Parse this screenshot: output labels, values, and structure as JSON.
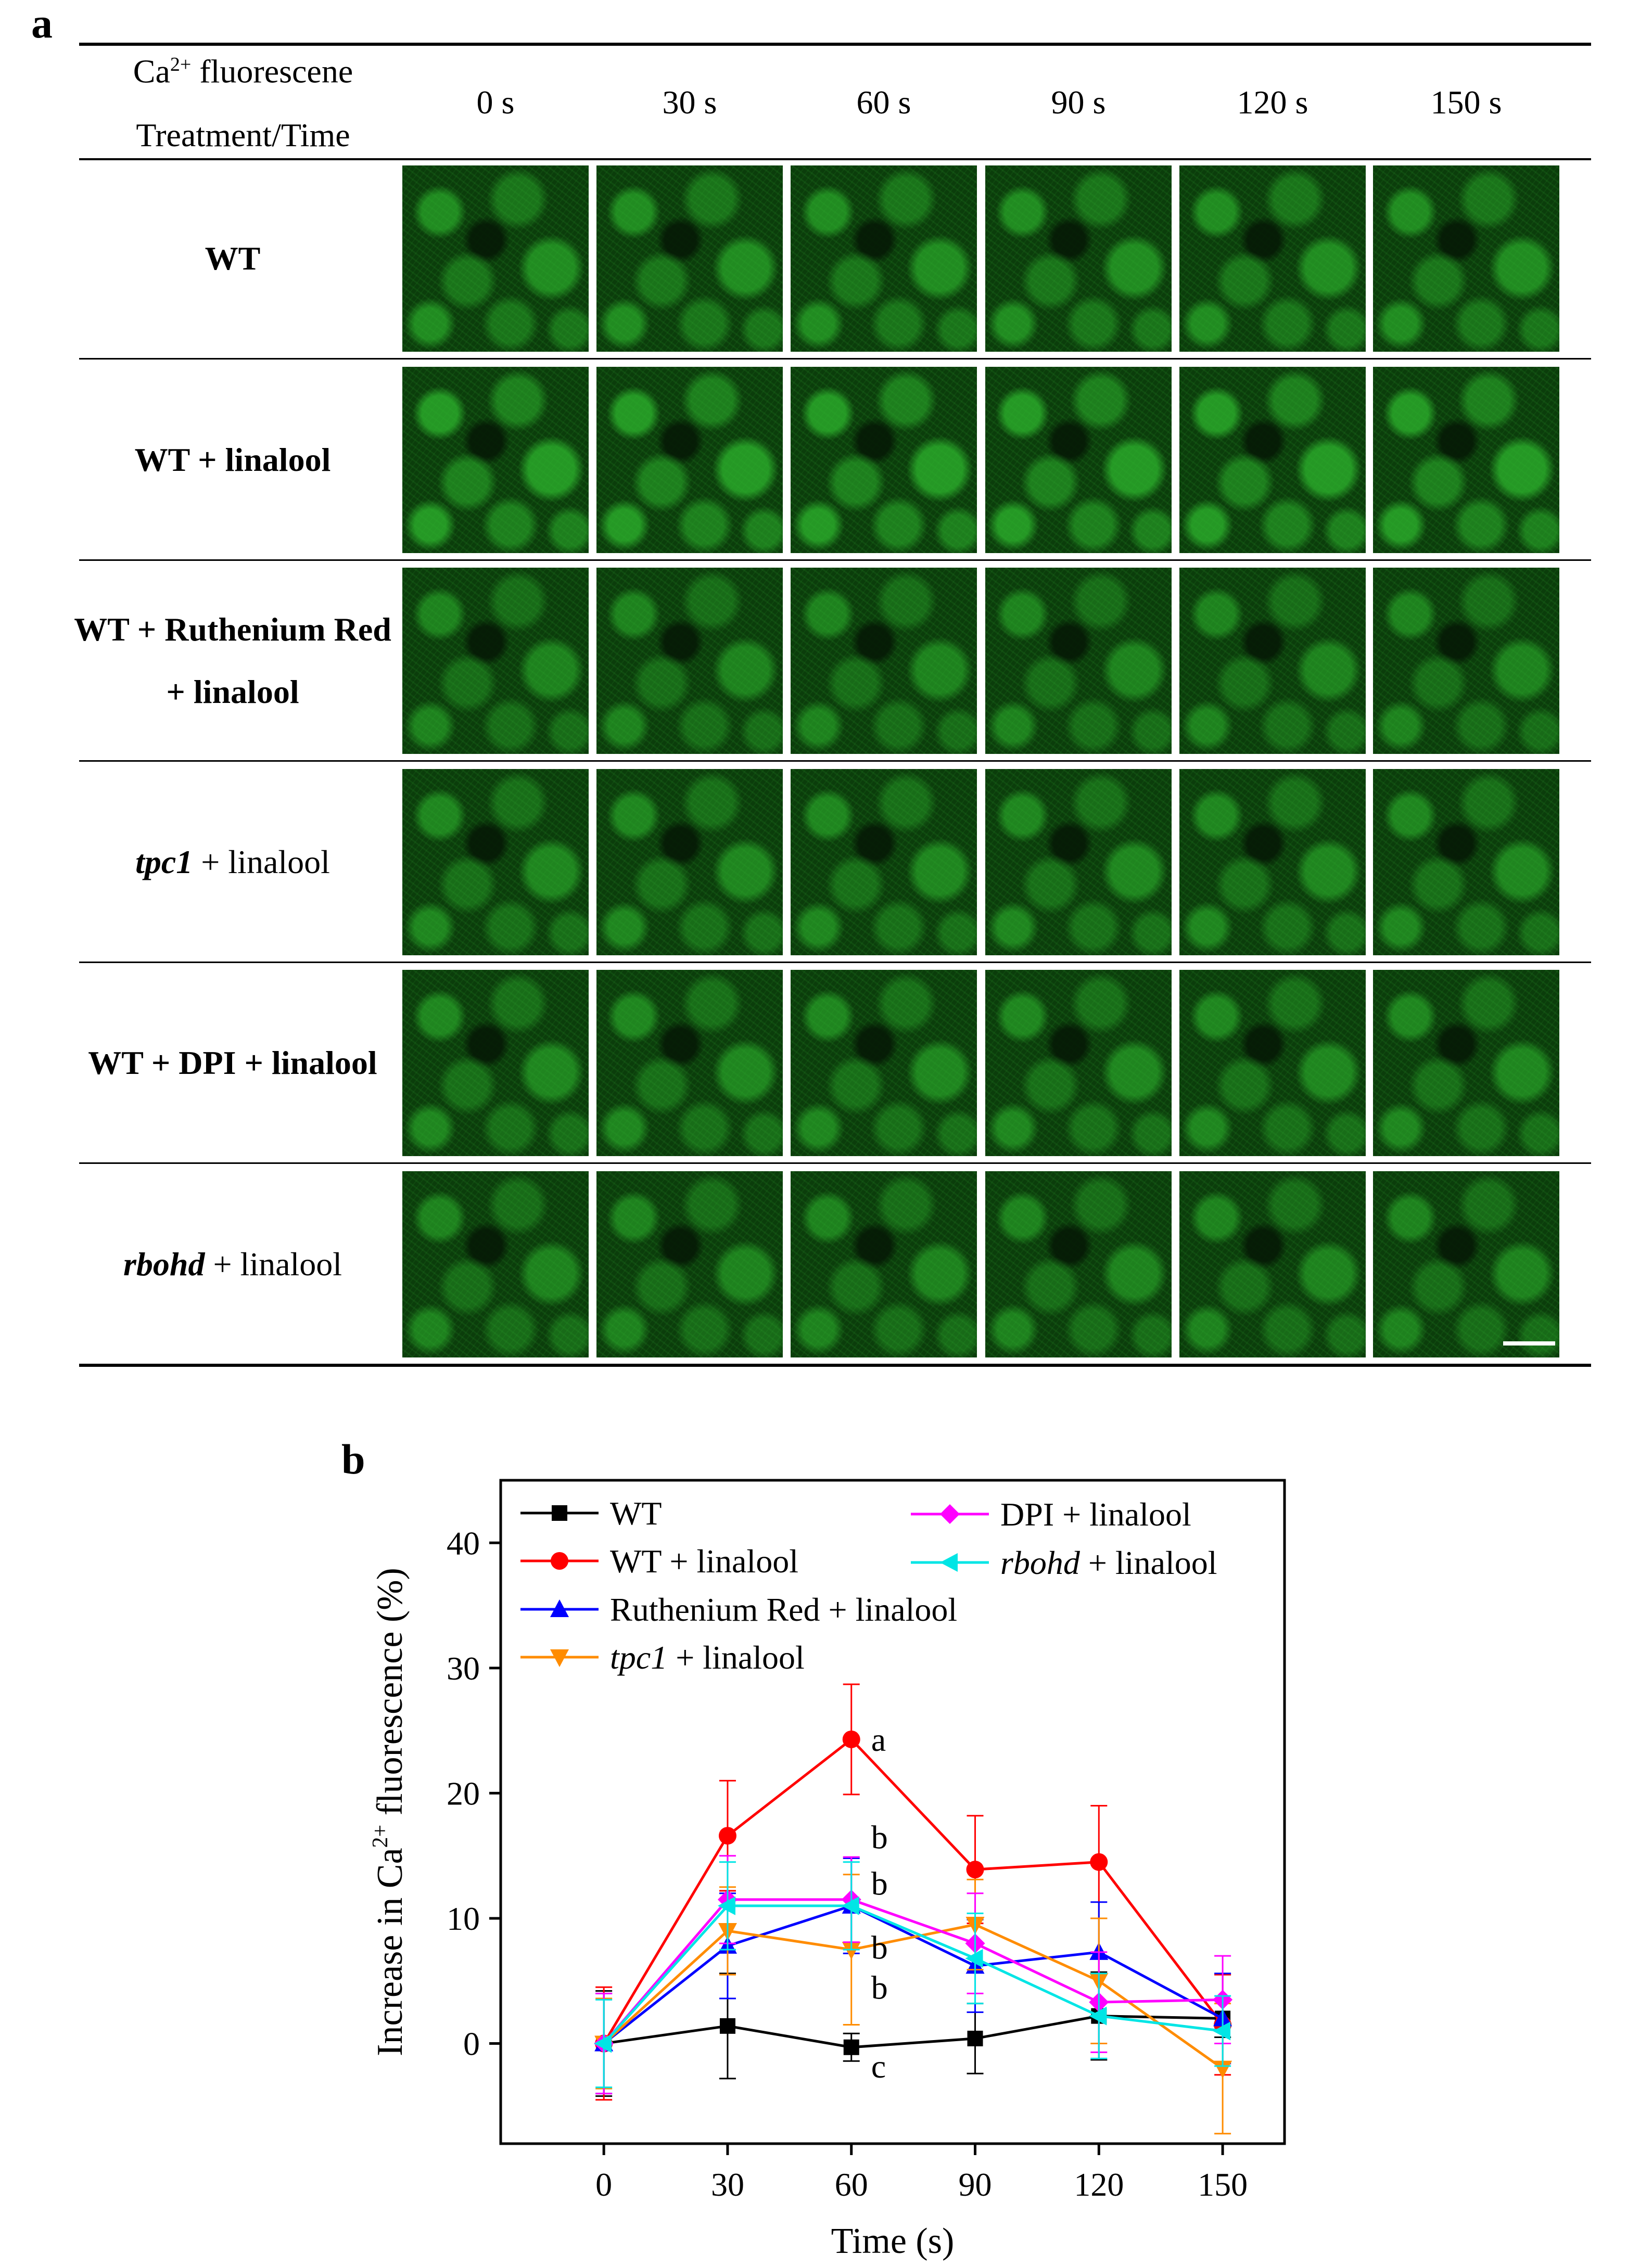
{
  "panel_a": {
    "letter": "a",
    "header": {
      "row1": "Ca",
      "row1_sup": "2+",
      "row1_rest": " fluorescene",
      "row2": "Treatment/Time"
    },
    "times": [
      "0 s",
      "30 s",
      "60 s",
      "90 s",
      "120 s",
      "150 s"
    ],
    "rows": [
      {
        "italic": "",
        "text": "WT",
        "line2": ""
      },
      {
        "italic": "",
        "text": "WT + linalool",
        "line2": ""
      },
      {
        "italic": "",
        "text": "WT + Ruthenium Red",
        "line2": "+ linalool"
      },
      {
        "italic": "tpc1",
        "text": " + linalool",
        "line2": ""
      },
      {
        "italic": "",
        "text": "WT + DPI + linalool",
        "line2": ""
      },
      {
        "italic": "rbohd",
        "text": " + linalool",
        "line2": ""
      }
    ],
    "image_brightness": [
      0.55,
      0.75,
      0.4,
      0.45,
      0.45,
      0.4
    ],
    "color_fluorescence": "#2db52d"
  },
  "panel_b": {
    "letter": "b"
  },
  "chart_data": {
    "type": "line",
    "xlabel": "Time (s)",
    "ylabel_prefix": "Increase in Ca",
    "ylabel_sup": "2+",
    "ylabel_suffix": " fluorescence (%)",
    "xlim": [
      -25,
      165
    ],
    "ylim": [
      -8,
      45
    ],
    "x_ticks": [
      0,
      30,
      60,
      90,
      120,
      150
    ],
    "y_ticks": [
      0,
      10,
      20,
      30,
      40
    ],
    "x": [
      0,
      30,
      60,
      90,
      120,
      150
    ],
    "series": [
      {
        "name": "WT",
        "italic": "",
        "color": "#000000",
        "marker": "square",
        "values": [
          0,
          1.4,
          -0.3,
          0.4,
          2.2,
          2.0
        ],
        "errors": [
          4.2,
          4.2,
          1.1,
          2.8,
          3.5,
          1.5
        ]
      },
      {
        "name": "WT + linalool",
        "italic": "",
        "color": "#ff0000",
        "marker": "circle",
        "values": [
          0,
          16.6,
          24.3,
          13.9,
          14.5,
          1.5
        ],
        "errors": [
          4.5,
          4.4,
          4.4,
          4.3,
          4.5,
          4.0
        ]
      },
      {
        "name": "Ruthenium Red + linalool",
        "italic": "",
        "color": "#0000ff",
        "marker": "triangle-up",
        "values": [
          0,
          7.8,
          11.0,
          6.2,
          7.3,
          2.0
        ],
        "errors": [
          4.0,
          4.2,
          3.8,
          3.7,
          4.0,
          3.6
        ]
      },
      {
        "name": " + linalool",
        "italic": "tpc1",
        "color": "#ff8c00",
        "marker": "triangle-down",
        "values": [
          0,
          9.0,
          7.5,
          9.5,
          5.0,
          -2.0
        ],
        "errors": [
          3.6,
          3.5,
          6.0,
          3.6,
          5.0,
          5.2
        ]
      },
      {
        "name": "DPI + linalool",
        "italic": "",
        "color": "#ff00ff",
        "marker": "diamond",
        "values": [
          0,
          11.5,
          11.5,
          8.0,
          3.3,
          3.5
        ],
        "errors": [
          4.0,
          3.5,
          3.4,
          4.0,
          4.0,
          3.5
        ]
      },
      {
        "name": " + linalool",
        "italic": "rbohd",
        "color": "#00e5e5",
        "marker": "triangle-left",
        "values": [
          0,
          11.0,
          11.0,
          6.8,
          2.2,
          1.0
        ],
        "errors": [
          3.5,
          3.5,
          3.5,
          3.6,
          3.4,
          2.8
        ]
      }
    ],
    "annotations": [
      {
        "text": "a",
        "x": 60,
        "y": 24.3
      },
      {
        "text": "b",
        "x": 60,
        "y": 16.5
      },
      {
        "text": "b",
        "x": 60,
        "y": 12.8
      },
      {
        "text": "b",
        "x": 60,
        "y": 7.7
      },
      {
        "text": "b",
        "x": 60,
        "y": 4.5
      },
      {
        "text": "c",
        "x": 60,
        "y": -1.8
      }
    ],
    "legend_position": "top",
    "grid": false
  }
}
